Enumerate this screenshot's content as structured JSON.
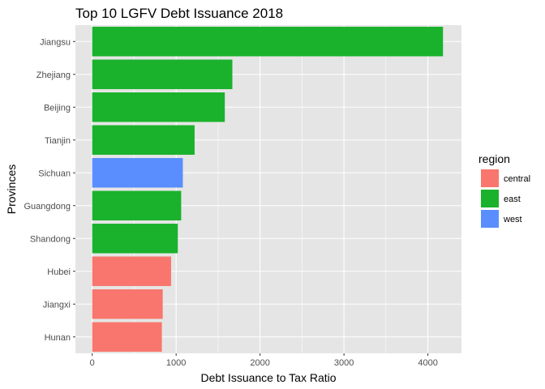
{
  "chart_data": {
    "type": "bar",
    "orientation": "horizontal",
    "title": "Top 10 LGFV Debt Issuance 2018",
    "xlabel": "Debt Issuance to Tax Ratio",
    "ylabel": "Provinces",
    "xlim": [
      -200,
      4400
    ],
    "x_ticks": [
      "0",
      "1000",
      "2000",
      "3000",
      "4000"
    ],
    "grid": true,
    "categories": [
      "Jiangsu",
      "Zhejiang",
      "Beijing",
      "Tianjin",
      "Sichuan",
      "Guangdong",
      "Shandong",
      "Hubei",
      "Jiangxi",
      "Hunan"
    ],
    "values": [
      4180,
      1670,
      1580,
      1220,
      1080,
      1060,
      1020,
      940,
      840,
      830
    ],
    "region": [
      "east",
      "east",
      "east",
      "east",
      "west",
      "east",
      "east",
      "central",
      "central",
      "central"
    ],
    "legend": {
      "title": "region",
      "position": "right",
      "items": [
        {
          "label": "central",
          "color": "#F8766D"
        },
        {
          "label": "east",
          "color": "#1AB22C"
        },
        {
          "label": "west",
          "color": "#5A8EFF"
        }
      ]
    },
    "colors": {
      "panel_background": "#E5E5E5",
      "grid_major": "#FFFFFF"
    }
  }
}
